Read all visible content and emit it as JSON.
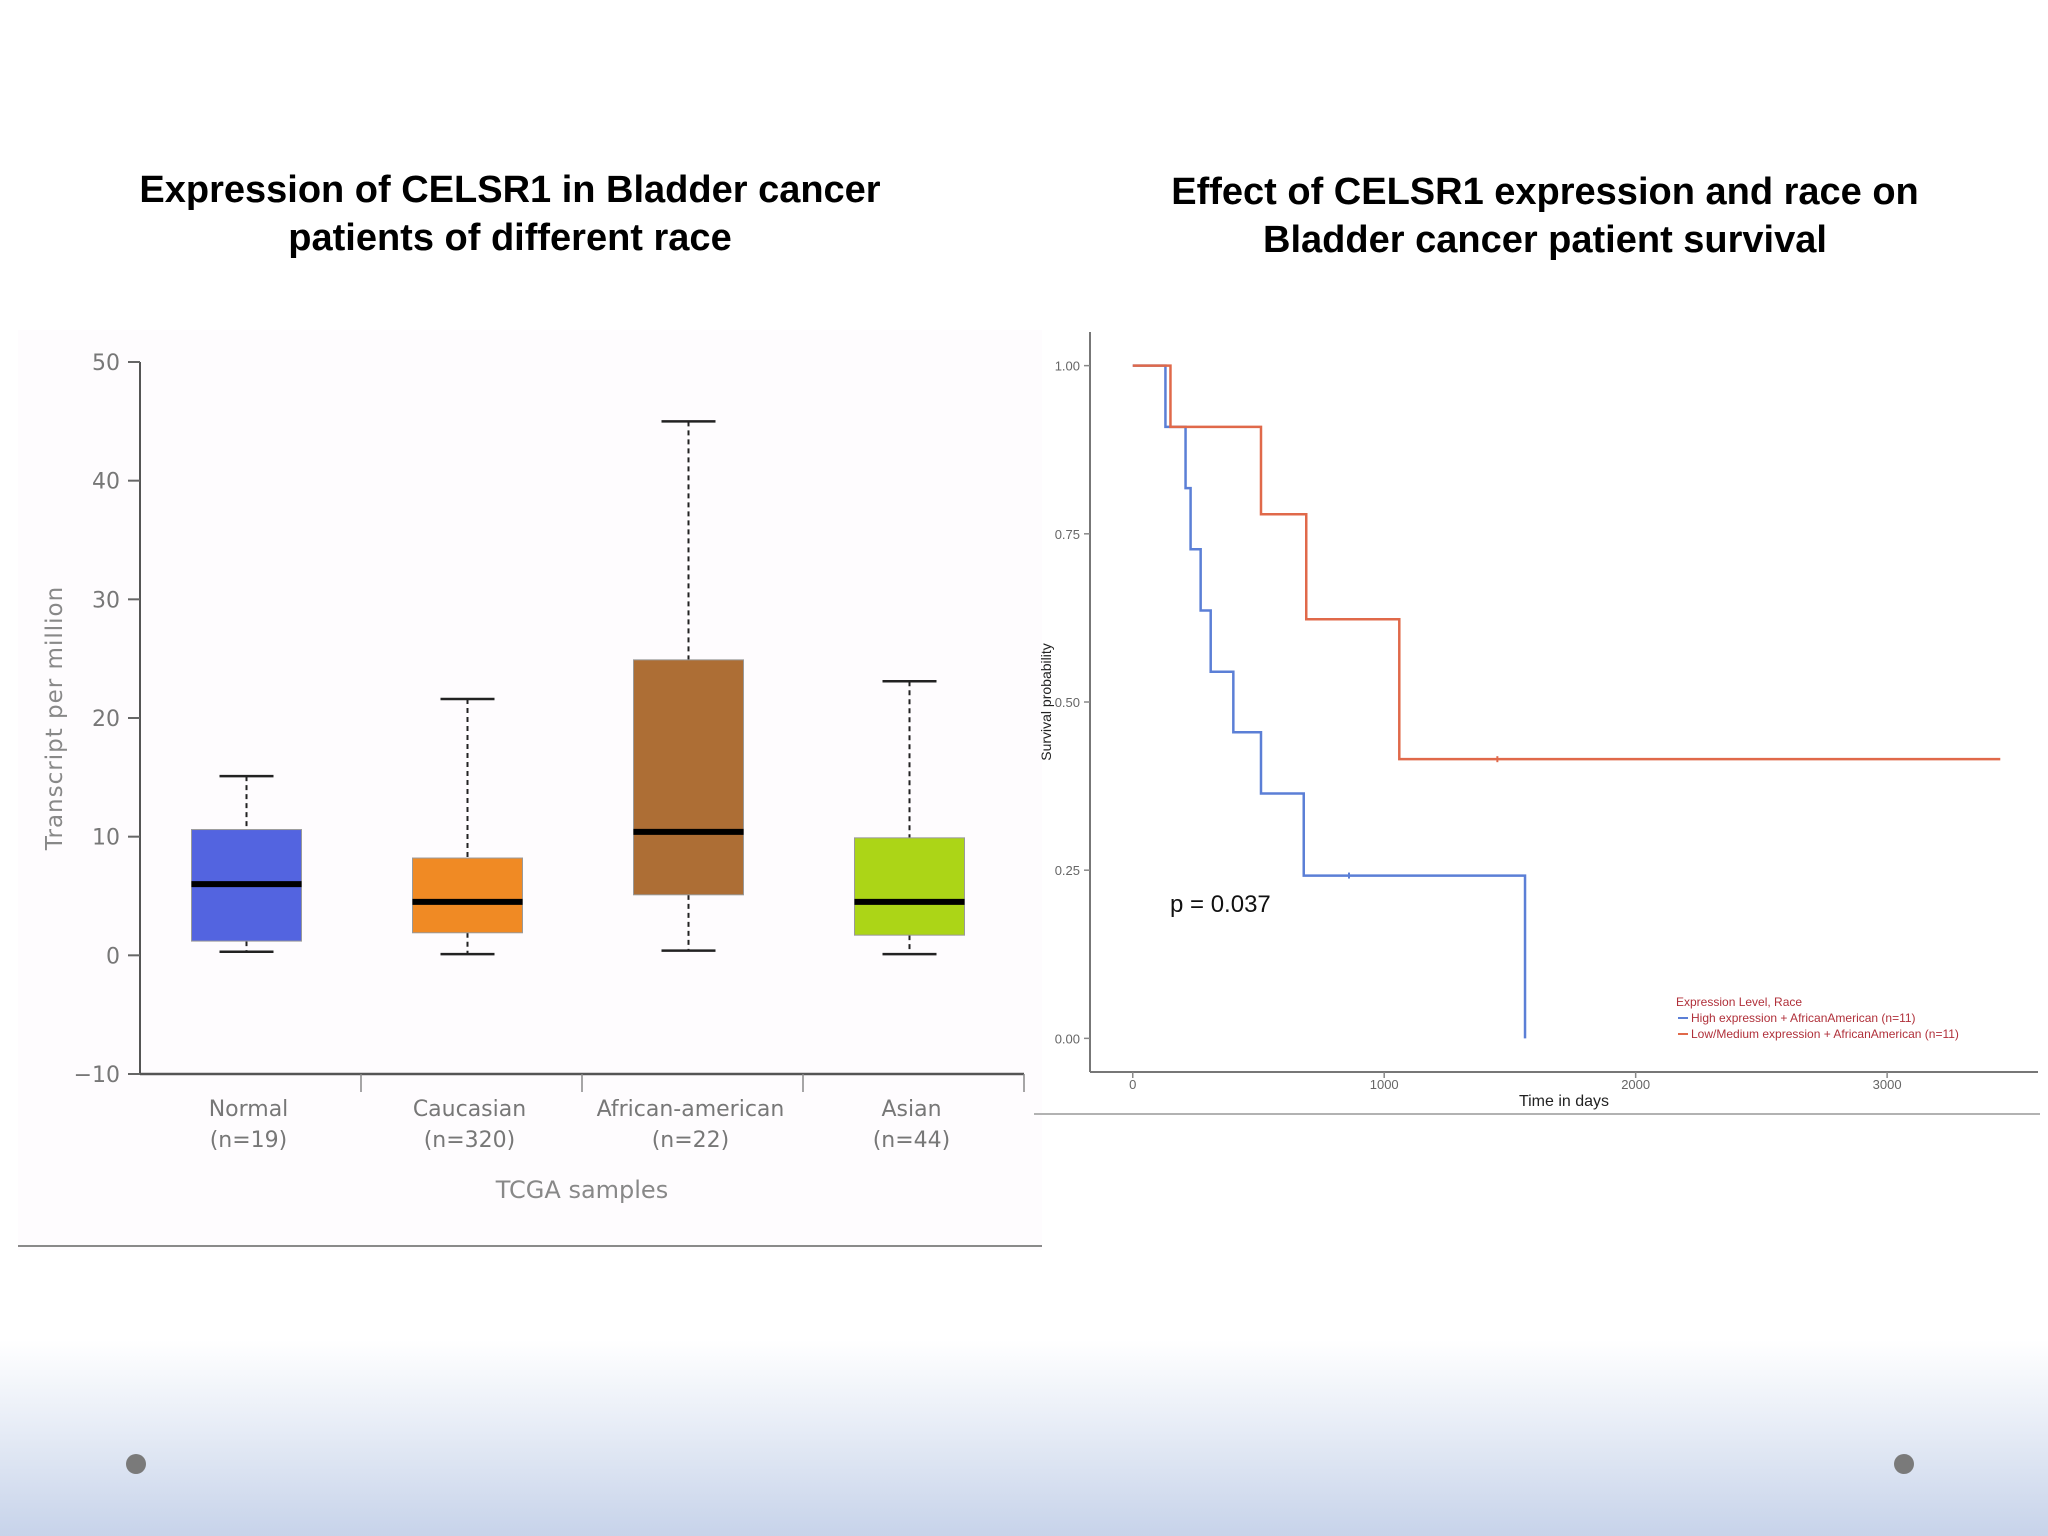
{
  "slide": {
    "left_title_line1": "Expression of CELSR1 in Bladder cancer",
    "left_title_line2": "patients of different race",
    "right_title_line1": "Effect of CELSR1 expression and race on",
    "right_title_line2": "Bladder cancer patient survival"
  },
  "chart_data": [
    {
      "type": "boxplot",
      "ylabel": "Transcript per million",
      "xlabel": "TCGA samples",
      "ylim": [
        -10,
        50
      ],
      "yticks": [
        -10,
        0,
        10,
        20,
        30,
        40,
        50
      ],
      "categories": [
        "Normal",
        "Caucasian",
        "African-american",
        "Asian"
      ],
      "category_counts": [
        "(n=19)",
        "(n=320)",
        "(n=22)",
        "(n=44)"
      ],
      "boxes": [
        {
          "name": "Normal",
          "min": 0.3,
          "q1": 1.2,
          "median": 6.0,
          "q3": 10.6,
          "max": 15.1,
          "color": "#5364e0"
        },
        {
          "name": "Caucasian",
          "min": 0.1,
          "q1": 1.9,
          "median": 4.5,
          "q3": 8.2,
          "max": 21.6,
          "color": "#f08a24"
        },
        {
          "name": "African-american",
          "min": 0.4,
          "q1": 5.1,
          "median": 10.4,
          "q3": 24.9,
          "max": 45.0,
          "color": "#ad6e35"
        },
        {
          "name": "Asian",
          "min": 0.1,
          "q1": 1.7,
          "median": 4.5,
          "q3": 9.9,
          "max": 23.1,
          "color": "#acd517"
        }
      ]
    },
    {
      "type": "line",
      "subtype": "kaplan-meier",
      "xlabel": "Time in days",
      "ylabel": "Survival probability",
      "xlim": [
        -170,
        3600
      ],
      "ylim": [
        -0.05,
        1.05
      ],
      "xticks": [
        0,
        1000,
        2000,
        3000
      ],
      "yticks": [
        "0.00",
        "0.25",
        "0.50",
        "0.75",
        "1.00"
      ],
      "annotation": "p = 0.037",
      "legend_title": "Expression Level, Race",
      "legend_position": "bottom-right",
      "series": [
        {
          "name": "High expression + AfricanAmerican (n=11)",
          "color": "#5b7fd6",
          "steps": [
            [
              0,
              1.0
            ],
            [
              130,
              0.909
            ],
            [
              210,
              0.818
            ],
            [
              230,
              0.727
            ],
            [
              270,
              0.636
            ],
            [
              310,
              0.545
            ],
            [
              400,
              0.455
            ],
            [
              510,
              0.364
            ],
            [
              680,
              0.242
            ],
            [
              1560,
              0.0
            ]
          ],
          "censor": [
            [
              860,
              0.242
            ]
          ]
        },
        {
          "name": "Low/Medium expression + AfricanAmerican (n=11)",
          "color": "#e0694a",
          "steps": [
            [
              0,
              1.0
            ],
            [
              150,
              0.909
            ],
            [
              510,
              0.779
            ],
            [
              690,
              0.623
            ],
            [
              1060,
              0.415
            ],
            [
              3450,
              0.415
            ]
          ],
          "censor": [
            [
              1450,
              0.415
            ]
          ]
        }
      ]
    }
  ]
}
